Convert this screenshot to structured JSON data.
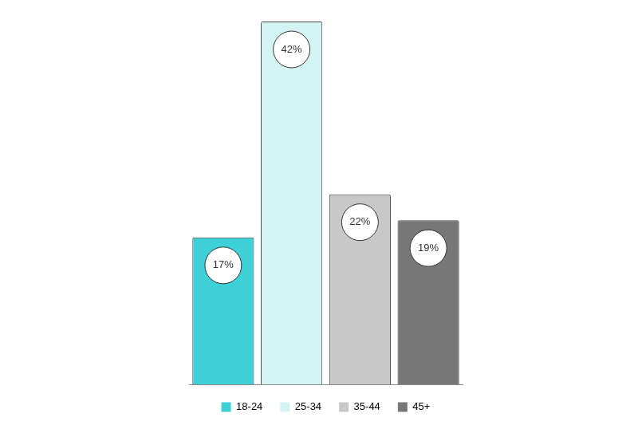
{
  "chart_data": {
    "type": "bar",
    "categories": [
      "18-24",
      "25-34",
      "35-44",
      "45+"
    ],
    "values": [
      17,
      42,
      22,
      19
    ],
    "value_labels": [
      "17%",
      "42%",
      "22%",
      "19%"
    ],
    "colors": [
      "#3dd0d6",
      "#d4f3f3",
      "#c8c8c8",
      "#777777"
    ],
    "ylim": [
      0,
      42
    ],
    "grid": false,
    "legend": "bottom",
    "data_labels": true,
    "tick_labels": false
  }
}
